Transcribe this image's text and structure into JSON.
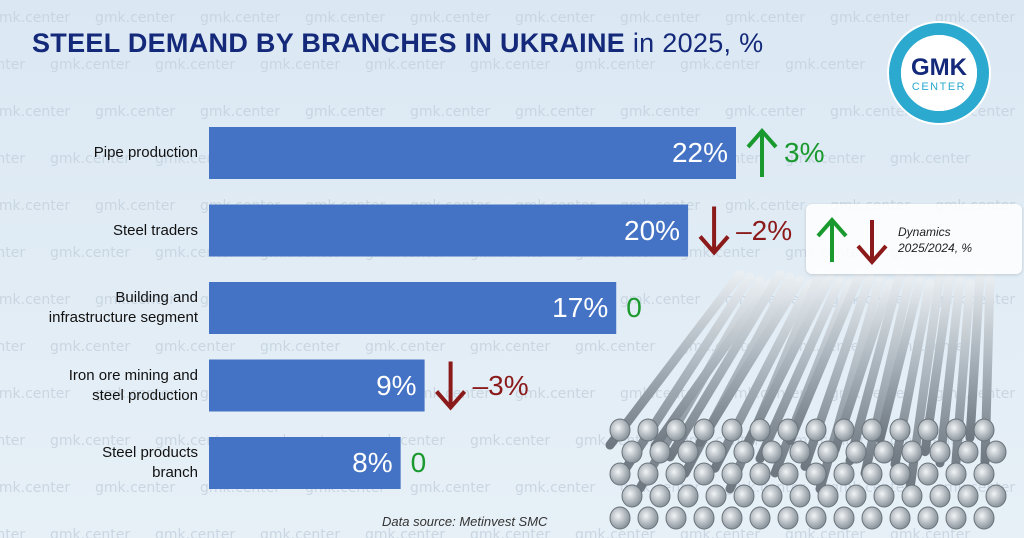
{
  "title": {
    "bold_part": "STEEL DEMAND BY BRANCHES IN UKRAINE",
    "rest": " in 2025, %"
  },
  "logo": {
    "line1": "GMK",
    "line2": "CENTER"
  },
  "watermark": "gmk.center",
  "legend_label": "Dynamics\n2025/2024, %",
  "source": "Data source: Metinvest SMC",
  "colors": {
    "bar": "#4472c4",
    "up": "#1a9a2e",
    "down": "#8b1a1a",
    "title": "#14297a"
  },
  "chart_data": {
    "type": "bar",
    "orientation": "horizontal",
    "title": "STEEL DEMAND BY BRANCHES IN UKRAINE in 2025, %",
    "categories": [
      "Pipe production",
      "Steel traders",
      "Building and infrastructure segment",
      "Iron ore mining and steel production",
      "Steel products branch"
    ],
    "category_lines": [
      [
        "Pipe production"
      ],
      [
        "Steel traders"
      ],
      [
        "Building and",
        "infrastructure segment"
      ],
      [
        "Iron ore mining and",
        "steel production"
      ],
      [
        "Steel products",
        "branch"
      ]
    ],
    "values": [
      22,
      20,
      17,
      9,
      8
    ],
    "value_labels": [
      "22%",
      "20%",
      "17%",
      "9%",
      "8%"
    ],
    "dynamics": [
      3,
      -2,
      0,
      -3,
      0
    ],
    "dynamics_labels": [
      "3%",
      "–2%",
      "0",
      "–3%",
      "0"
    ],
    "xlim": [
      0,
      22
    ]
  }
}
